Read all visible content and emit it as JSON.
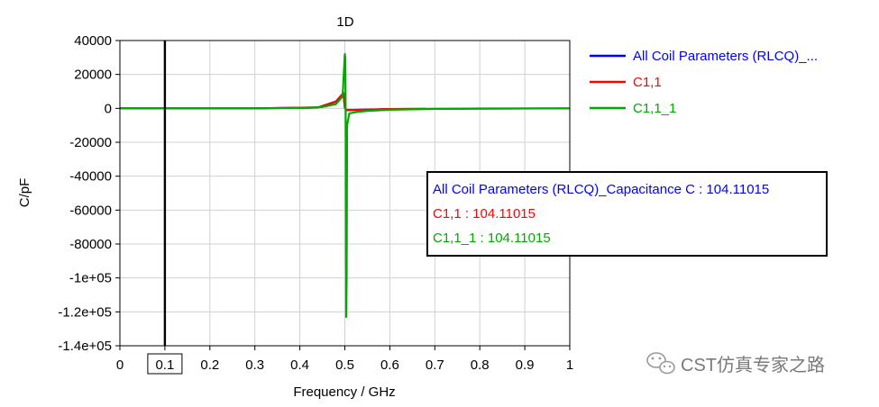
{
  "chart_data": {
    "type": "line",
    "title": "1D",
    "xlabel": "Frequency / GHz",
    "ylabel": "C/pF",
    "xlim": [
      0,
      1
    ],
    "ylim": [
      -140000,
      40000
    ],
    "x_ticks": [
      "0",
      "0.1",
      "0.2",
      "0.3",
      "0.4",
      "0.5",
      "0.6",
      "0.7",
      "0.8",
      "0.9",
      "1"
    ],
    "y_ticks": [
      "40000",
      "20000",
      "0",
      "-20000",
      "-40000",
      "-60000",
      "-80000",
      "-1e+05",
      "-1.2e+05",
      "-1.4e+05"
    ],
    "grid": true,
    "legend_position": "right",
    "marker_x": 0.1,
    "marker_x_label": "0.1",
    "series": [
      {
        "name": "All Coil Parameters (RLCQ)_...",
        "color": "#0000ff",
        "points": [
          [
            0,
            0
          ],
          [
            0.3,
            0
          ],
          [
            0.44,
            500
          ],
          [
            0.48,
            4000
          ],
          [
            0.497,
            9000
          ],
          [
            0.5,
            500
          ],
          [
            0.503,
            -1000
          ],
          [
            0.55,
            -800
          ],
          [
            0.6,
            -400
          ],
          [
            0.68,
            -300
          ]
        ]
      },
      {
        "name": "C1,1",
        "color": "#ff0000",
        "points": [
          [
            0,
            0
          ],
          [
            0.3,
            0
          ],
          [
            0.44,
            500
          ],
          [
            0.48,
            4000
          ],
          [
            0.497,
            9000
          ],
          [
            0.5,
            500
          ],
          [
            0.503,
            -1000
          ],
          [
            0.55,
            -800
          ],
          [
            0.6,
            -400
          ],
          [
            1,
            0
          ]
        ]
      },
      {
        "name": "C1,1_1",
        "color": "#00aa00",
        "points": [
          [
            0,
            0
          ],
          [
            0.3,
            0
          ],
          [
            0.42,
            300
          ],
          [
            0.45,
            800
          ],
          [
            0.48,
            2500
          ],
          [
            0.495,
            7000
          ],
          [
            0.5,
            32000
          ],
          [
            0.501,
            30000
          ],
          [
            0.502,
            -10000
          ],
          [
            0.503,
            -123000
          ],
          [
            0.504,
            -100000
          ],
          [
            0.505,
            -10000
          ],
          [
            0.51,
            -3000
          ],
          [
            0.53,
            -2000
          ],
          [
            0.55,
            -1500
          ],
          [
            0.6,
            -800
          ],
          [
            0.7,
            -300
          ],
          [
            0.8,
            -100
          ],
          [
            1,
            0
          ]
        ]
      }
    ],
    "readout": [
      {
        "text": "All Coil Parameters (RLCQ)_Capacitance C : 104.11015",
        "color": "#0000ff"
      },
      {
        "text": "C1,1 : 104.11015",
        "color": "#ff0000"
      },
      {
        "text": "C1,1_1 : 104.11015",
        "color": "#00aa00"
      }
    ]
  },
  "watermark": {
    "text": "CST仿真专家之路",
    "icon": "wechat-icon"
  }
}
